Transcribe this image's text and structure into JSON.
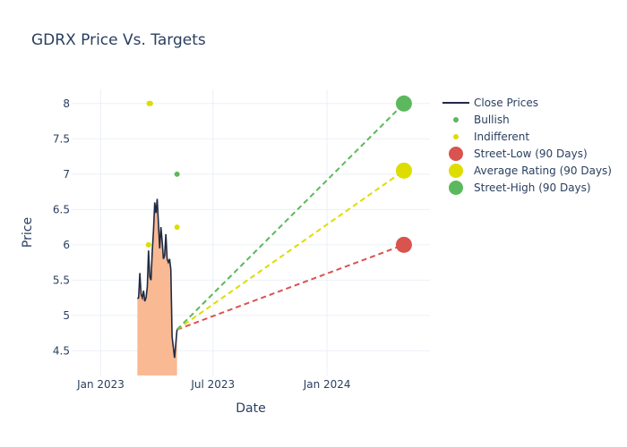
{
  "chart_data": {
    "type": "line",
    "title": "GDRX Price Vs. Targets",
    "xlabel": "Date",
    "ylabel": "Price",
    "x_ticks": [
      {
        "label": "Jan 2023",
        "date": "2023-01-01"
      },
      {
        "label": "Jul 2023",
        "date": "2023-07-01"
      },
      {
        "label": "Jan 2024",
        "date": "2024-01-01"
      }
    ],
    "y_ticks": [
      4.5,
      5,
      5.5,
      6,
      6.5,
      7,
      7.5,
      8
    ],
    "xlim": [
      "2022-11-15",
      "2024-06-15"
    ],
    "ylim": [
      4.15,
      8.2
    ],
    "grid": true,
    "legend_position": "right",
    "series": [
      {
        "name": "Close Prices",
        "kind": "line",
        "color": "#1f2a44",
        "fill_color": "#f9b993",
        "points": [
          [
            "2023-03-01",
            5.24
          ],
          [
            "2023-03-03",
            5.25
          ],
          [
            "2023-03-05",
            5.6
          ],
          [
            "2023-03-07",
            5.3
          ],
          [
            "2023-03-09",
            5.25
          ],
          [
            "2023-03-11",
            5.35
          ],
          [
            "2023-03-13",
            5.2
          ],
          [
            "2023-03-15",
            5.25
          ],
          [
            "2023-03-17",
            5.4
          ],
          [
            "2023-03-19",
            5.92
          ],
          [
            "2023-03-21",
            5.55
          ],
          [
            "2023-03-23",
            5.5
          ],
          [
            "2023-03-25",
            5.9
          ],
          [
            "2023-03-27",
            6.2
          ],
          [
            "2023-03-29",
            6.6
          ],
          [
            "2023-03-31",
            6.45
          ],
          [
            "2023-04-02",
            6.65
          ],
          [
            "2023-04-04",
            6.3
          ],
          [
            "2023-04-06",
            5.95
          ],
          [
            "2023-04-08",
            6.25
          ],
          [
            "2023-04-10",
            6.05
          ],
          [
            "2023-04-12",
            5.8
          ],
          [
            "2023-04-14",
            5.85
          ],
          [
            "2023-04-16",
            6.15
          ],
          [
            "2023-04-18",
            5.8
          ],
          [
            "2023-04-20",
            5.75
          ],
          [
            "2023-04-22",
            5.8
          ],
          [
            "2023-04-24",
            5.65
          ],
          [
            "2023-04-26",
            4.7
          ],
          [
            "2023-04-28",
            4.55
          ],
          [
            "2023-04-30",
            4.4
          ],
          [
            "2023-05-02",
            4.6
          ],
          [
            "2023-05-04",
            4.8
          ]
        ]
      },
      {
        "name": "Bullish",
        "kind": "markers",
        "color": "#5cb85c",
        "points": [
          [
            "2023-05-04",
            7.0
          ]
        ]
      },
      {
        "name": "Indifferent",
        "kind": "markers",
        "color": "#dddd00",
        "points": [
          [
            "2023-03-20",
            8.0
          ],
          [
            "2023-03-22",
            8.0
          ],
          [
            "2023-03-19",
            6.0
          ],
          [
            "2023-05-04",
            6.25
          ]
        ]
      },
      {
        "name": "Street-Low (90 Days)",
        "kind": "target",
        "color": "#d9534f",
        "start": [
          "2023-05-04",
          4.8
        ],
        "end": [
          "2024-05-04",
          6.0
        ]
      },
      {
        "name": "Average Rating (90 Days)",
        "kind": "target",
        "color": "#dddd00",
        "start": [
          "2023-05-04",
          4.8
        ],
        "end": [
          "2024-05-04",
          7.05
        ]
      },
      {
        "name": "Street-High (90 Days)",
        "kind": "target",
        "color": "#5cb85c",
        "start": [
          "2023-05-04",
          4.8
        ],
        "end": [
          "2024-05-04",
          8.0
        ]
      }
    ]
  }
}
